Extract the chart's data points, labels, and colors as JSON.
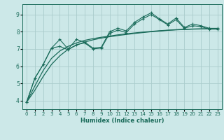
{
  "xlabel": "Humidex (Indice chaleur)",
  "bg_color": "#cce8e8",
  "grid_color": "#aacccc",
  "line_color": "#1a6b5a",
  "xlim": [
    -0.5,
    23.5
  ],
  "ylim": [
    3.5,
    9.6
  ],
  "yticks": [
    4,
    5,
    6,
    7,
    8,
    9
  ],
  "xticks": [
    0,
    1,
    2,
    3,
    4,
    5,
    6,
    7,
    8,
    9,
    10,
    11,
    12,
    13,
    14,
    15,
    16,
    17,
    18,
    19,
    20,
    21,
    22,
    23
  ],
  "line1": [
    3.9,
    5.3,
    6.1,
    7.05,
    7.55,
    7.0,
    7.55,
    7.4,
    7.05,
    7.1,
    8.0,
    8.2,
    8.05,
    8.55,
    8.85,
    9.1,
    8.75,
    8.45,
    8.8,
    8.25,
    8.45,
    8.35,
    8.2,
    8.2
  ],
  "line2": [
    3.9,
    5.3,
    6.1,
    7.05,
    7.15,
    6.95,
    7.25,
    7.35,
    7.0,
    7.05,
    7.9,
    8.1,
    7.95,
    8.45,
    8.75,
    9.0,
    8.7,
    8.4,
    8.7,
    8.2,
    8.35,
    8.3,
    8.15,
    8.15
  ],
  "smooth1": [
    3.9,
    4.85,
    5.75,
    6.45,
    6.88,
    7.15,
    7.35,
    7.5,
    7.6,
    7.68,
    7.75,
    7.82,
    7.88,
    7.93,
    7.98,
    8.02,
    8.06,
    8.09,
    8.12,
    8.14,
    8.16,
    8.17,
    8.18,
    8.18
  ],
  "smooth2": [
    3.9,
    4.6,
    5.4,
    6.1,
    6.6,
    6.98,
    7.22,
    7.4,
    7.53,
    7.63,
    7.71,
    7.78,
    7.84,
    7.9,
    7.95,
    8.0,
    8.04,
    8.08,
    8.11,
    8.13,
    8.15,
    8.16,
    8.17,
    8.18
  ],
  "tick_fontsize": 5.0,
  "xlabel_fontsize": 6.0
}
